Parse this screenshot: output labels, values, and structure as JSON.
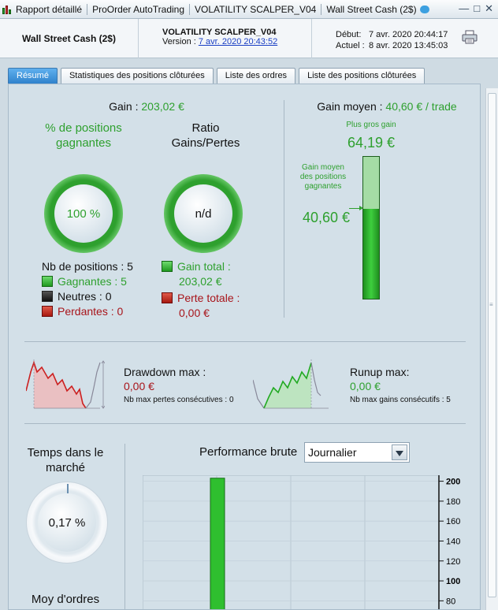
{
  "window": {
    "title_parts": [
      "Rapport détaillé",
      "ProOrder AutoTrading",
      "VOLATILITY SCALPER_V04",
      "Wall Street Cash (2$)"
    ]
  },
  "header": {
    "instrument": "Wall Street Cash (2$)",
    "strategy_name": "VOLATILITY SCALPER_V04",
    "version_label": "Version :",
    "version_link": "7 avr. 2020 20:43:52",
    "start_label": "Début:",
    "start_value": "7 avr. 2020 20:44:17",
    "current_label": "Actuel :",
    "current_value": "8 avr. 2020 13:45:03"
  },
  "tabs": [
    "Résumé",
    "Statistiques des positions clôturées",
    "Liste des ordres",
    "Liste des positions clôturées"
  ],
  "summary": {
    "gain_label": "Gain :",
    "gain_value": "203,02 €",
    "pct_win_title": "% de positions gagnantes",
    "pct_win_value": "100 %",
    "ratio_title": "Ratio Gains/Pertes",
    "ratio_value": "n/d",
    "nb_positions": "Nb de positions : 5",
    "winning": "Gagnantes : 5",
    "neutral": "Neutres : 0",
    "losing": "Perdantes : 0",
    "total_gain_label": "Gain total :",
    "total_gain_value": "203,02 €",
    "total_loss_label": "Perte totale :",
    "total_loss_value": "0,00 €",
    "avg_gain_label": "Gain moyen :",
    "avg_gain_value": "40,60 € / trade",
    "biggest_gain_label": "Plus gros gain",
    "biggest_gain_value": "64,19 €",
    "avg_win_label": "Gain moyen des positions gagnantes",
    "avg_win_value": "40,60 €",
    "avg_win_fraction": 0.6326
  },
  "drawdown": {
    "label": "Drawdown max :",
    "value": "0,00 €",
    "consec_label": "Nb max pertes consécutives : 0"
  },
  "runup": {
    "label": "Runup max:",
    "value": "0,00 €",
    "consec_label": "Nb max gains consécutifs : 5"
  },
  "market_time": {
    "title": "Temps dans le marché",
    "value": "0,17 %",
    "avg_orders_title": "Moy d'ordres"
  },
  "performance": {
    "title": "Performance brute",
    "period_selected": "Journalier"
  },
  "chart_data": {
    "type": "bar",
    "values": [
      203.02
    ],
    "yticks": [
      200,
      180,
      160,
      140,
      120,
      100,
      80
    ],
    "ylim": [
      70,
      206
    ]
  },
  "colors": {
    "positive": "#2ea02e",
    "negative": "#a8141a",
    "accent_tab": "#2f82cc"
  }
}
